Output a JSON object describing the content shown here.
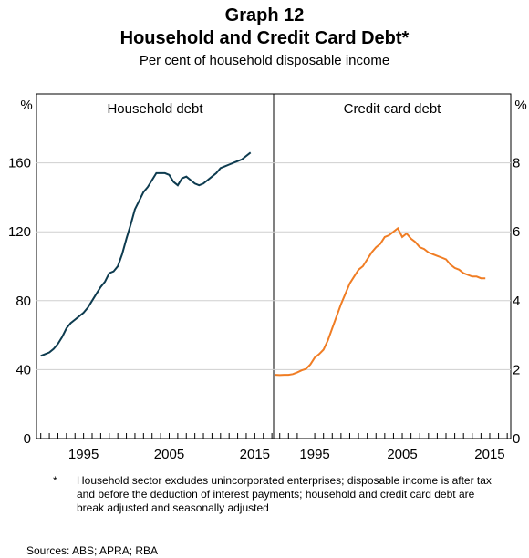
{
  "header": {
    "title_line1": "Graph 12",
    "title_line2": "Household and Credit Card Debt*",
    "subtitle": "Per cent of household disposable income"
  },
  "footnote": {
    "marker": "*",
    "text": "Household sector excludes unincorporated enterprises; disposable income is after tax and before the deduction of interest payments; household and credit card debt are break adjusted and seasonally adjusted"
  },
  "sources": "Sources:   ABS; APRA; RBA",
  "chart_data": [
    {
      "type": "line",
      "panel": "left",
      "title": "Household debt",
      "ylabel": "%",
      "ylim": [
        0,
        200
      ],
      "yticks": [
        0,
        40,
        80,
        120,
        160
      ],
      "xlim": [
        1989.5,
        2017.2
      ],
      "xticks": [
        1995,
        2005,
        2015
      ],
      "grid": true,
      "series": [
        {
          "color": "#0d3b4f",
          "x": [
            1990.0,
            1990.5,
            1991.0,
            1991.5,
            1992.0,
            1992.5,
            1993.0,
            1993.5,
            1994.0,
            1994.5,
            1995.0,
            1995.5,
            1996.0,
            1996.5,
            1997.0,
            1997.5,
            1998.0,
            1998.5,
            1999.0,
            1999.5,
            2000.0,
            2000.5,
            2001.0,
            2001.5,
            2002.0,
            2002.5,
            2003.0,
            2003.5,
            2004.0,
            2004.5,
            2005.0,
            2005.5,
            2006.0,
            2006.5,
            2007.0,
            2007.5,
            2008.0,
            2008.5,
            2009.0,
            2009.5,
            2010.0,
            2010.5,
            2011.0,
            2011.5,
            2012.0,
            2012.5,
            2013.0,
            2013.5,
            2014.0,
            2014.5
          ],
          "values": [
            48,
            49,
            50,
            52,
            55,
            59,
            64,
            67,
            69,
            71,
            73,
            76,
            80,
            84,
            88,
            91,
            96,
            97,
            100,
            107,
            116,
            124,
            133,
            138,
            143,
            146,
            150,
            154,
            154,
            154,
            153,
            149,
            147,
            151,
            152,
            150,
            148,
            147,
            148,
            150,
            152,
            154,
            157,
            158,
            159,
            160,
            161,
            162,
            164,
            166
          ]
        }
      ]
    },
    {
      "type": "line",
      "panel": "right",
      "title": "Credit card debt",
      "ylabel": "%",
      "ylim": [
        0,
        10
      ],
      "yticks": [
        0,
        2,
        4,
        6,
        8
      ],
      "xlim": [
        1990.3,
        2017.4
      ],
      "xticks": [
        1995,
        2005,
        2015
      ],
      "grid": true,
      "series": [
        {
          "color": "#f07d24",
          "x": [
            1990.5,
            1991.0,
            1991.5,
            1992.0,
            1992.5,
            1993.0,
            1993.5,
            1994.0,
            1994.5,
            1995.0,
            1995.5,
            1996.0,
            1996.5,
            1997.0,
            1997.5,
            1998.0,
            1998.5,
            1999.0,
            1999.5,
            2000.0,
            2000.5,
            2001.0,
            2001.5,
            2002.0,
            2002.5,
            2003.0,
            2003.5,
            2004.0,
            2004.5,
            2005.0,
            2005.5,
            2006.0,
            2006.5,
            2007.0,
            2007.5,
            2008.0,
            2008.5,
            2009.0,
            2009.5,
            2010.0,
            2010.5,
            2011.0,
            2011.5,
            2012.0,
            2012.5,
            2013.0,
            2013.5,
            2014.0,
            2014.5
          ],
          "values": [
            1.85,
            1.84,
            1.85,
            1.85,
            1.87,
            1.92,
            1.98,
            2.02,
            2.15,
            2.35,
            2.45,
            2.58,
            2.85,
            3.2,
            3.55,
            3.9,
            4.2,
            4.5,
            4.7,
            4.9,
            5.0,
            5.2,
            5.4,
            5.55,
            5.65,
            5.85,
            5.9,
            6.0,
            6.1,
            5.85,
            5.95,
            5.8,
            5.7,
            5.55,
            5.5,
            5.4,
            5.35,
            5.3,
            5.25,
            5.2,
            5.05,
            4.95,
            4.9,
            4.8,
            4.75,
            4.7,
            4.7,
            4.65,
            4.65
          ]
        }
      ]
    }
  ],
  "colors": {
    "household": "#0d3b4f",
    "credit": "#f07d24",
    "grid": "#cfcfcf",
    "axis": "#000000"
  }
}
